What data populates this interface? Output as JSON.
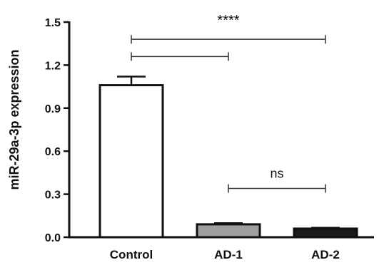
{
  "chart_data": {
    "type": "bar",
    "title": "",
    "xlabel": "",
    "ylabel": "miR-29a-3p expression",
    "ylim": [
      0,
      1.5
    ],
    "yticks": [
      "0.0",
      "0.3",
      "0.6",
      "0.9",
      "1.2",
      "1.5"
    ],
    "categories": [
      "Control",
      "AD-1",
      "AD-2"
    ],
    "values": [
      1.06,
      0.09,
      0.06
    ],
    "errors": [
      0.06,
      0.008,
      0.006
    ],
    "bar_colors": [
      "#ffffff",
      "#9e9e9e",
      "#1a1a1a"
    ],
    "grid": false,
    "legend": "none",
    "annotations": [
      {
        "label": "****",
        "from": 0,
        "to": 2,
        "level": 1.38
      },
      {
        "label": "",
        "from": 0,
        "to": 1,
        "level": 1.26
      },
      {
        "label": "ns",
        "from": 1,
        "to": 2,
        "level": 0.34
      }
    ]
  }
}
